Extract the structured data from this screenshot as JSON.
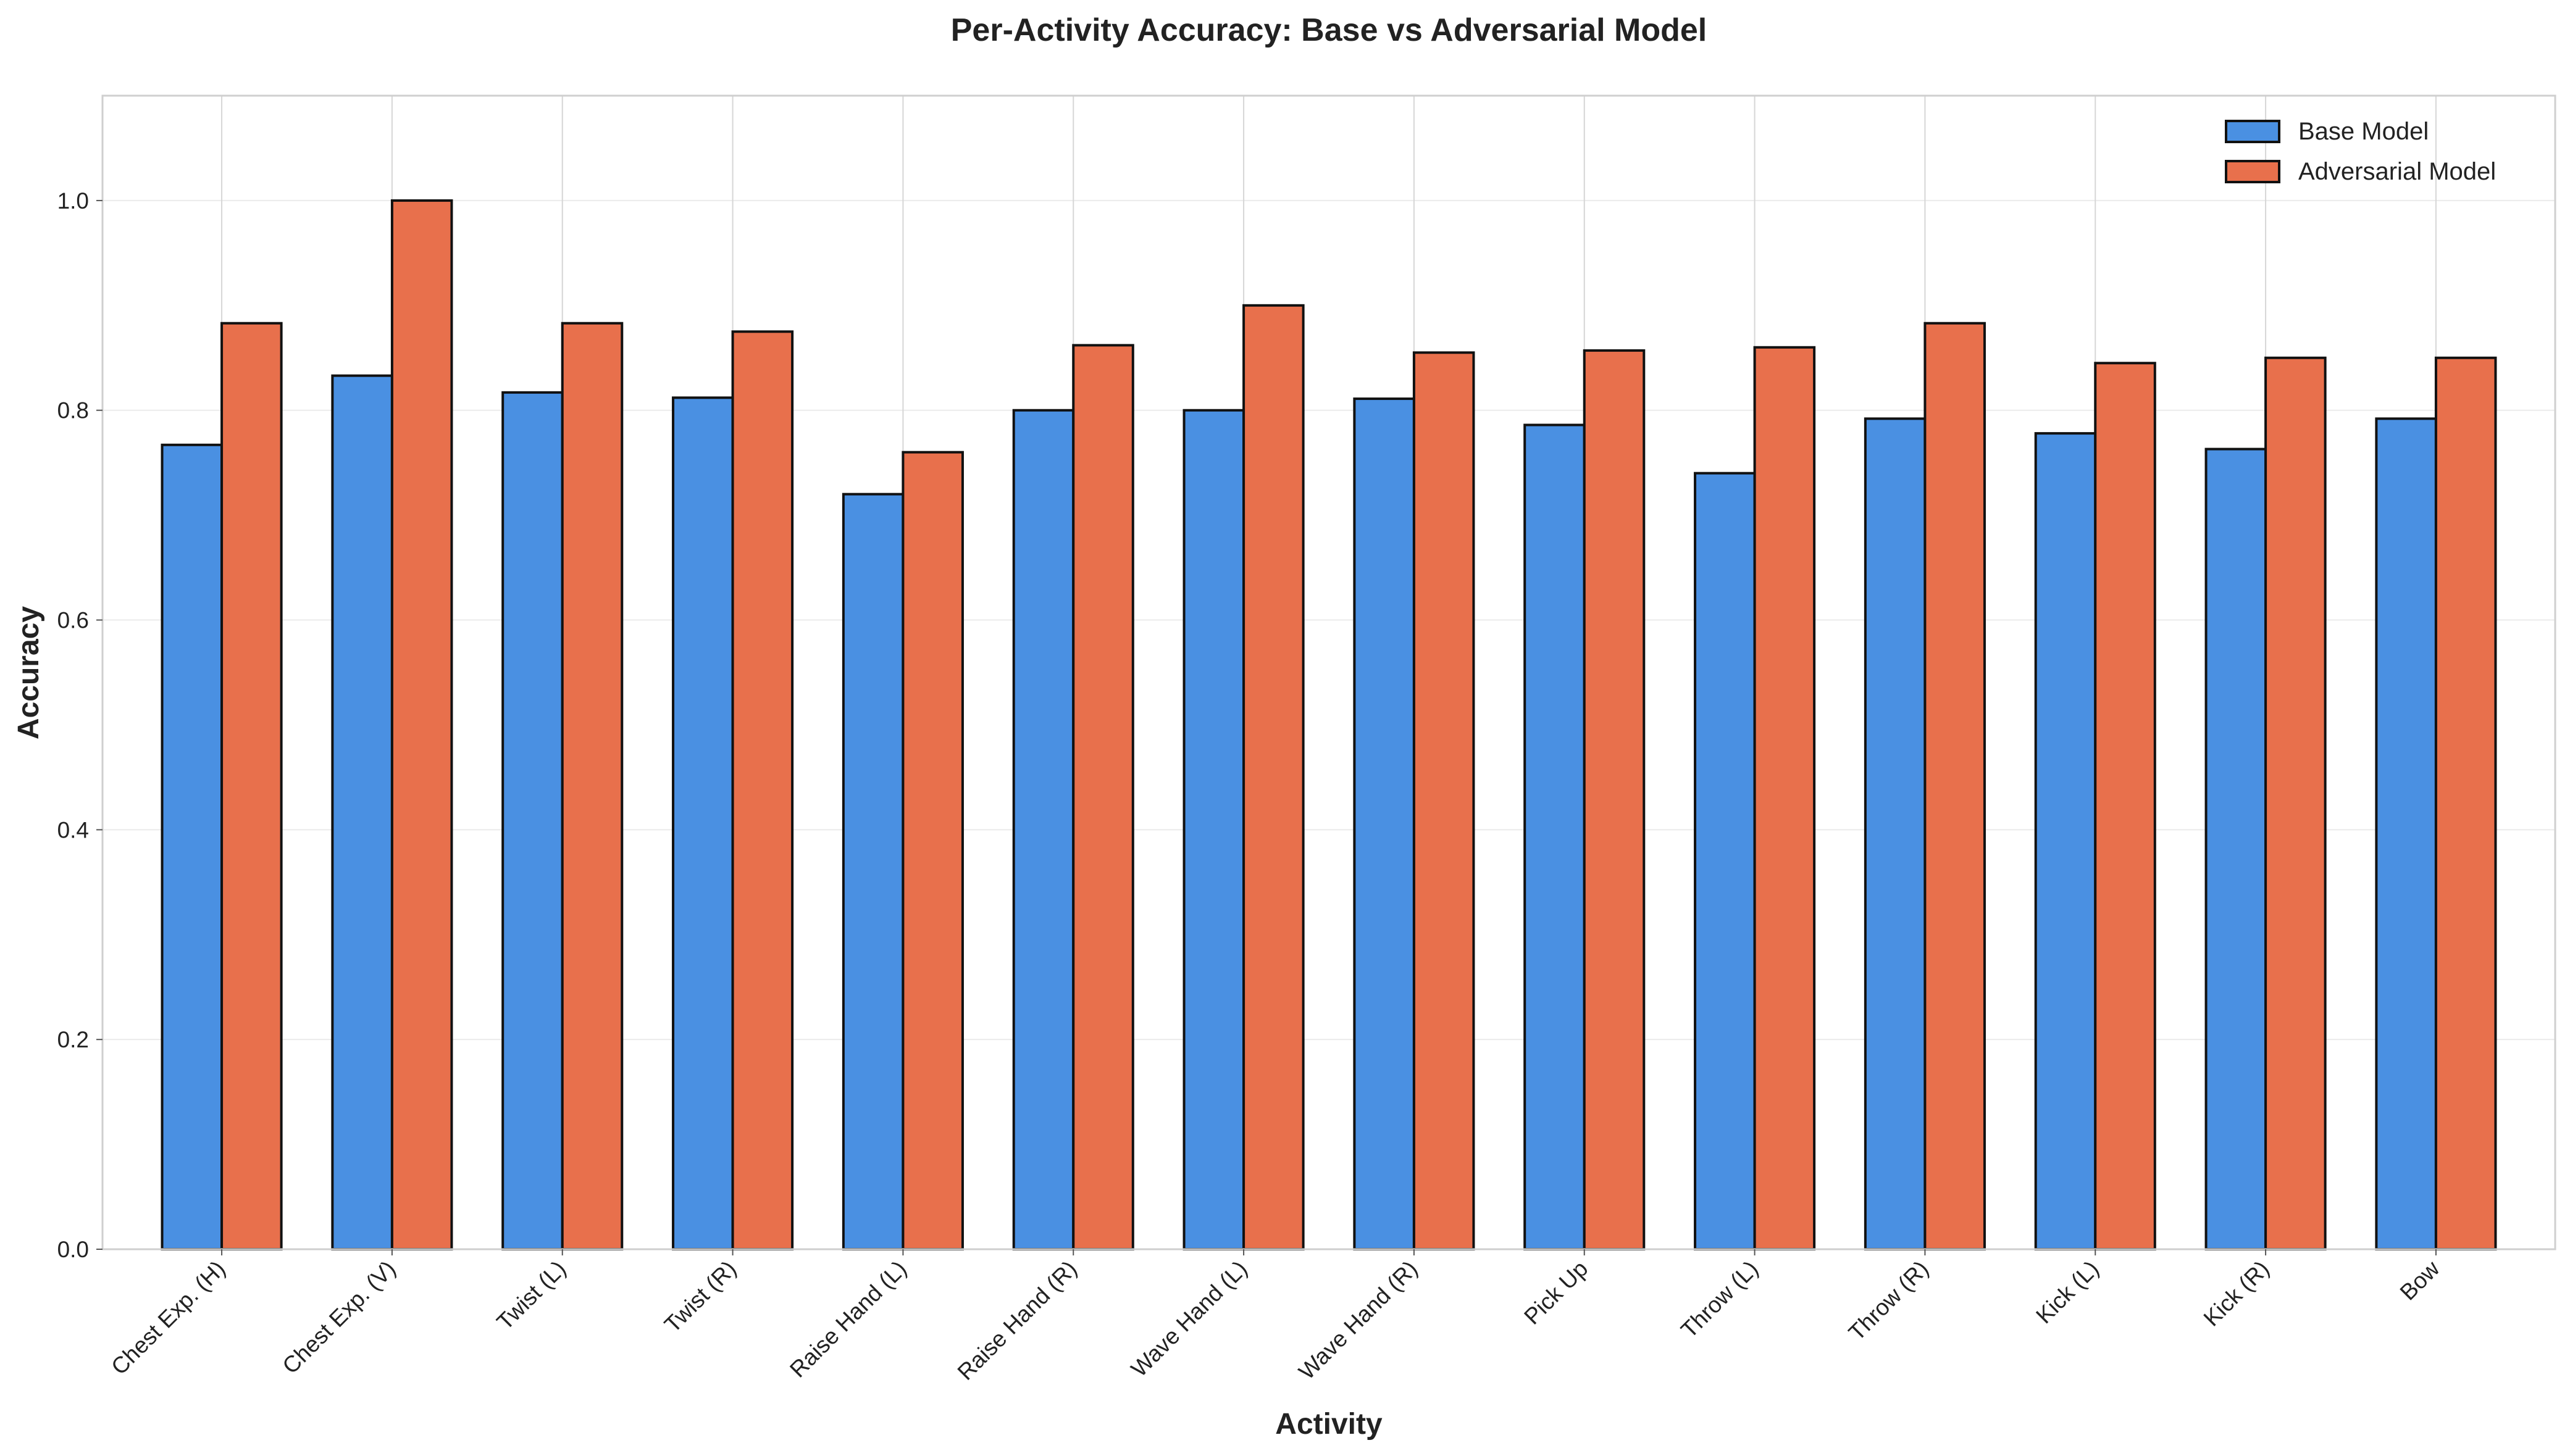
{
  "chart_data": {
    "type": "bar",
    "title": "Per-Activity Accuracy: Base vs Adversarial Model",
    "xlabel": "Activity",
    "ylabel": "Accuracy",
    "ylim": [
      0,
      1.1
    ],
    "yticks": [
      0.0,
      0.2,
      0.4,
      0.6,
      0.8,
      1.0
    ],
    "ytick_labels": [
      "0.0",
      "0.2",
      "0.4",
      "0.6",
      "0.8",
      "1.0"
    ],
    "grid": true,
    "legend_position": "top-right",
    "categories": [
      "Chest Exp. (H)",
      "Chest Exp. (V)",
      "Twist (L)",
      "Twist (R)",
      "Raise Hand (L)",
      "Raise Hand (R)",
      "Wave Hand (L)",
      "Wave Hand (R)",
      "Pick Up",
      "Throw (L)",
      "Throw (R)",
      "Kick (L)",
      "Kick (R)",
      "Bow"
    ],
    "series": [
      {
        "name": "Base Model",
        "color": "#4a90e2",
        "values": [
          0.767,
          0.833,
          0.817,
          0.812,
          0.72,
          0.8,
          0.8,
          0.811,
          0.786,
          0.74,
          0.792,
          0.778,
          0.763,
          0.792
        ]
      },
      {
        "name": "Adversarial Model",
        "color": "#e8704c",
        "values": [
          0.883,
          1.0,
          0.883,
          0.875,
          0.76,
          0.862,
          0.9,
          0.855,
          0.857,
          0.86,
          0.883,
          0.845,
          0.85,
          0.85
        ]
      }
    ]
  }
}
